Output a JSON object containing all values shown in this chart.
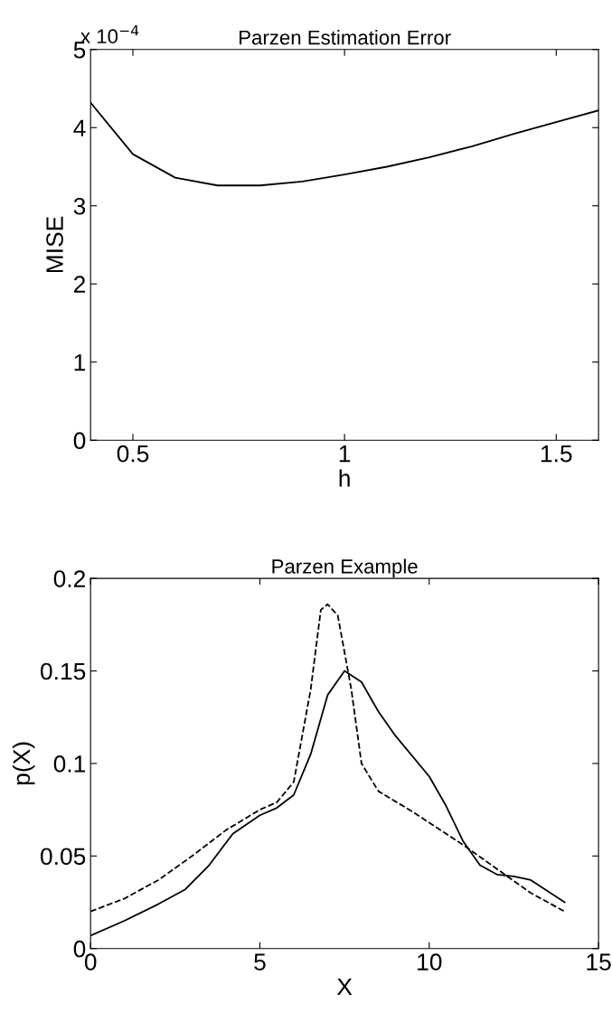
{
  "chart_data": [
    {
      "type": "line",
      "title": "Parzen Estimation Error",
      "xlabel": "h",
      "ylabel": "MISE",
      "annotations": [
        "x 10$^{−4}$"
      ],
      "x": [
        0.4,
        0.5,
        0.6,
        0.7,
        0.8,
        0.9,
        1.0,
        1.1,
        1.2,
        1.3,
        1.4,
        1.5,
        1.6
      ],
      "series": [
        {
          "color": "#000000",
          "line_style": "solid",
          "values": [
            4.32,
            3.66,
            3.36,
            3.26,
            3.26,
            3.31,
            3.4,
            3.5,
            3.62,
            3.76,
            3.92,
            4.07,
            4.22
          ]
        }
      ],
      "xlim": [
        0.4,
        1.6
      ],
      "xticks": [
        0.5,
        1,
        1.5
      ],
      "ylim": [
        0,
        5
      ],
      "yticks": [
        0,
        1,
        2,
        3,
        4,
        5
      ],
      "grid": false,
      "legend": false
    },
    {
      "type": "line",
      "title": "Parzen Example",
      "xlabel": "X",
      "ylabel": "p(X)",
      "series": [
        {
          "color": "#000000",
          "line_style": "solid",
          "x": [
            0,
            1,
            2,
            2.8,
            3.5,
            4.2,
            5,
            5.5,
            6,
            6.5,
            7,
            7.5,
            8,
            8.5,
            9,
            10,
            10.5,
            11,
            11.5,
            12,
            12.5,
            13,
            14
          ],
          "values": [
            0.007,
            0.015,
            0.024,
            0.032,
            0.045,
            0.062,
            0.072,
            0.076,
            0.083,
            0.105,
            0.137,
            0.15,
            0.144,
            0.128,
            0.115,
            0.093,
            0.077,
            0.058,
            0.045,
            0.04,
            0.039,
            0.037,
            0.025
          ]
        },
        {
          "color": "#000000",
          "line_style": "dashed",
          "x": [
            0,
            1,
            2,
            3,
            4,
            5,
            5.5,
            6,
            6.5,
            6.8,
            7,
            7.3,
            7.7,
            8,
            8.5,
            9.5,
            10.5,
            11,
            12,
            13,
            14
          ],
          "values": [
            0.02,
            0.027,
            0.037,
            0.05,
            0.064,
            0.075,
            0.079,
            0.09,
            0.14,
            0.183,
            0.186,
            0.18,
            0.14,
            0.1,
            0.085,
            0.074,
            0.062,
            0.056,
            0.043,
            0.03,
            0.02
          ]
        }
      ],
      "xlim": [
        0,
        15
      ],
      "xticks": [
        0,
        5,
        10,
        15
      ],
      "ylim": [
        0,
        0.2
      ],
      "yticks": [
        0,
        0.05,
        0.1,
        0.15,
        0.2
      ],
      "grid": false,
      "legend": false
    }
  ]
}
